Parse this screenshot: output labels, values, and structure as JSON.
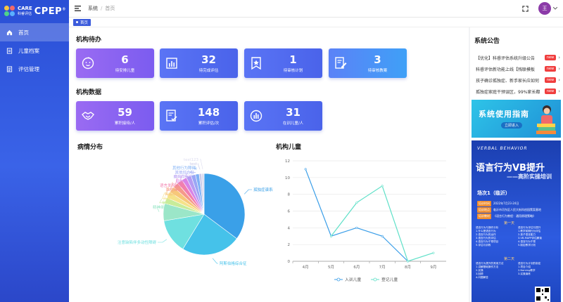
{
  "brand": {
    "care": "CARE",
    "care_sub": "科睿评估",
    "cpep": "CPEP",
    "reg": "®"
  },
  "nav": {
    "items": [
      {
        "label": "首页",
        "icon": "home-icon"
      },
      {
        "label": "儿童档案",
        "icon": "file-icon"
      },
      {
        "label": "评估管理",
        "icon": "list-icon"
      }
    ]
  },
  "breadcrumb": {
    "root": "系统",
    "sep": "/",
    "current": "首页"
  },
  "user": {
    "avatar_text": "王"
  },
  "tags": {
    "active": "首页"
  },
  "todo": {
    "title": "机构待办",
    "cards": [
      {
        "value": "6",
        "label": "待安排儿童"
      },
      {
        "value": "32",
        "label": "待完成评估"
      },
      {
        "value": "1",
        "label": "待审核计划"
      },
      {
        "value": "3",
        "label": "待审核教案"
      }
    ]
  },
  "stats": {
    "title": "机构数据",
    "cards": [
      {
        "value": "59",
        "label": "累积接待/人"
      },
      {
        "value": "148",
        "label": "累积评估/次"
      },
      {
        "value": "31",
        "label": "在训儿童/人"
      }
    ]
  },
  "notice": {
    "title": "系统公告",
    "items": [
      {
        "text": "【优化】科睿评估系统升级公告",
        "badge": "new"
      },
      {
        "text": "科睿评估新功能上线【残联模板",
        "badge": "new"
      },
      {
        "text": "孩子确诊孤独症、新手家长应如何",
        "badge": "new"
      },
      {
        "text": "孤独症家庭干预误区，99%家长都",
        "badge": "new"
      }
    ]
  },
  "banner1": {
    "title": "系统使用指南",
    "button": "立即进入"
  },
  "banner2": {
    "kicker": "VERBAL BEHAVIOR",
    "title": "语言行为VB提升",
    "subtitle": "——高阶实操培训",
    "session": "场次1（临沂）",
    "rows": [
      {
        "k": "培训时间",
        "v": "2022年7月23-24日"
      },
      {
        "k": "培训地点",
        "v": "临沂市河东区人民大街科创园策案基地"
      },
      {
        "k": "培训教材",
        "v": "《语言行为教程：通用原理策略》"
      }
    ],
    "day1": "第一天",
    "day2": "第二天",
    "col_left1": "语言行为与操作分析\n1.什么是语言行为\n2.语言行为的运作\n3.语言行为的评估\n4.语言行为干预项目\n5.评估与训练",
    "col_right1": "语言行为评估与提升\n1.教学前期行为评估\n2.孩子语言能力\n3.VB-MAPP评估解读\n4.语言行为干预\n5.制定教学计划",
    "col_left2": "语言行为提升的常用方法\n1.讲解基础操作方法\n2.实操\n3.回顾\n4.问题解答",
    "col_right2": "语言行为计划的制定\n1.项目介绍\n2.Naming教学\n3.实操演练"
  },
  "pie_section": {
    "title": "病情分布"
  },
  "line_section": {
    "title": "机构儿童"
  },
  "chart_data": [
    {
      "type": "pie",
      "title": "病情分布",
      "slices": [
        {
          "name": "孤独症谱系障碍",
          "value": 36,
          "color": "#3aa0e8"
        },
        {
          "name": "阿斯伯格综合征",
          "value": 24,
          "color": "#45c2ea"
        },
        {
          "name": "注意缺陷伴多动性障碍",
          "value": 14,
          "color": "#6fe0e0"
        },
        {
          "name": "精神发育迟滞",
          "value": 7,
          "color": "#9be6c8"
        },
        {
          "name": "学习障碍",
          "value": 2.5,
          "color": "#c8ec9a"
        },
        {
          "name": "儿童失语",
          "value": 2.5,
          "color": "#f5e28a"
        },
        {
          "name": "构音障碍",
          "value": 2.5,
          "color": "#f7c87a"
        },
        {
          "name": "脑性瘫痪",
          "value": 2.2,
          "color": "#f59a8a"
        },
        {
          "name": "语言发育迟缓",
          "value": 2.2,
          "color": "#f17fae"
        },
        {
          "name": "智力障碍",
          "value": 2,
          "color": "#d884e6"
        },
        {
          "name": "癫痫伴发症",
          "value": 2,
          "color": "#b59cf2"
        },
        {
          "name": "其他综合征",
          "value": 1.8,
          "color": "#9aa6f5"
        },
        {
          "name": "其他行为障碍",
          "value": 1.5,
          "color": "#7fb0f5"
        },
        {
          "name": "test",
          "value": 1,
          "color": "#c9c9e8"
        },
        {
          "name": "test123",
          "value": 1,
          "color": "#dcdcef"
        }
      ]
    },
    {
      "type": "line",
      "title": "机构儿童",
      "categories": [
        "4月",
        "5月",
        "6月",
        "7月",
        "8月",
        "9月"
      ],
      "ylim": [
        0,
        12
      ],
      "yticks": [
        0,
        2,
        4,
        6,
        8,
        10,
        12
      ],
      "series": [
        {
          "name": "入训儿童",
          "values": [
            11,
            3,
            4,
            3,
            0,
            null
          ],
          "color": "#3a9ee8"
        },
        {
          "name": "登记儿童",
          "values": [
            null,
            3,
            7,
            9,
            0,
            1
          ],
          "color": "#5fe0c8"
        }
      ],
      "legend": "bottom"
    }
  ]
}
